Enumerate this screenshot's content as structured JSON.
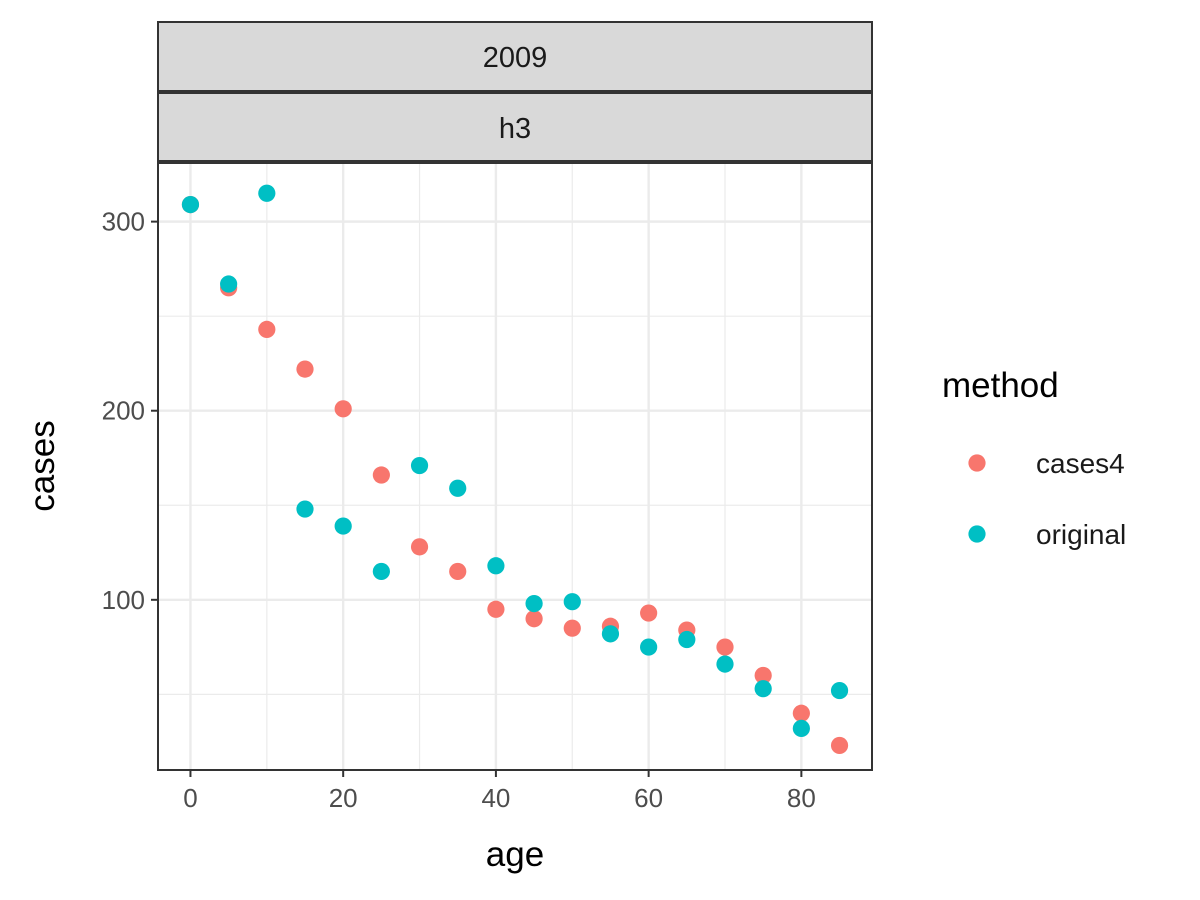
{
  "chart_data": {
    "type": "scatter",
    "facet_strips": [
      "2009",
      "h3"
    ],
    "xlabel": "age",
    "ylabel": "cases",
    "xlim": [
      -4.25,
      89.25
    ],
    "ylim": [
      10,
      331
    ],
    "x_ticks": [
      0,
      20,
      40,
      60,
      80
    ],
    "x_tick_labels": [
      "0",
      "20",
      "40",
      "60",
      "80"
    ],
    "y_ticks": [
      100,
      200,
      300
    ],
    "y_tick_labels": [
      "100",
      "200",
      "300"
    ],
    "grid": true,
    "legend": {
      "title": "method",
      "position": "right"
    },
    "series": [
      {
        "name": "cases4",
        "color": "#F8766D",
        "x": [
          0,
          5,
          10,
          15,
          20,
          25,
          30,
          35,
          40,
          45,
          50,
          55,
          60,
          65,
          70,
          75,
          80,
          85
        ],
        "y": [
          309,
          265,
          243,
          222,
          201,
          166,
          128,
          115,
          95,
          90,
          85,
          86,
          93,
          84,
          75,
          60,
          40,
          23
        ]
      },
      {
        "name": "original",
        "color": "#00BFC4",
        "x": [
          0,
          5,
          10,
          15,
          20,
          25,
          30,
          35,
          40,
          45,
          50,
          55,
          60,
          65,
          70,
          75,
          80,
          85
        ],
        "y": [
          309,
          267,
          315,
          148,
          139,
          115,
          171,
          159,
          118,
          98,
          99,
          82,
          75,
          79,
          66,
          53,
          32,
          52
        ]
      }
    ]
  }
}
